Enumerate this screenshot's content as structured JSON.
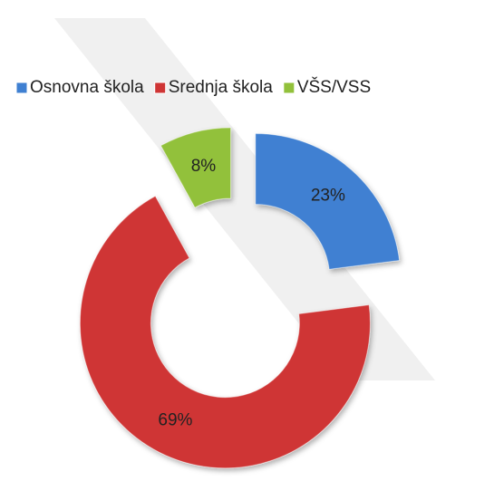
{
  "chart_data": {
    "type": "donut",
    "categories": [
      "Osnovna škola",
      "Srednja škola",
      "VŠS/VSS"
    ],
    "values": [
      23,
      69,
      8
    ],
    "value_labels": [
      "23%",
      "69%",
      "8%"
    ],
    "colors": [
      "#3f80d2",
      "#cf3535",
      "#92c13b"
    ],
    "legend": "top"
  }
}
